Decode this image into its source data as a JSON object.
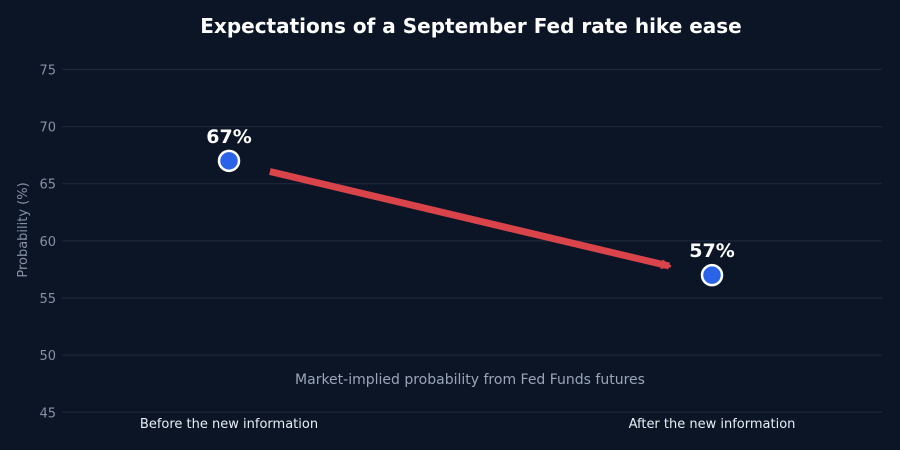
{
  "chart_data": {
    "type": "scatter",
    "title": "Expectations of a September Fed rate hike ease",
    "ylabel": "Probability (%)",
    "xlabel": "",
    "categories": [
      "Before the new information",
      "After the new information"
    ],
    "values": [
      67,
      57
    ],
    "point_labels": [
      "67%",
      "57%"
    ],
    "yticks": [
      45,
      50,
      55,
      60,
      65,
      70,
      75
    ],
    "ylim": [
      44.5,
      76
    ],
    "grid": true,
    "annotation": "Market-implied probability from Fed Funds futures",
    "arrow": {
      "from_category": 0,
      "to_category": 1,
      "color": "#d9434a"
    },
    "colors": {
      "background": "#0b1526",
      "point_fill": "#2b63e8",
      "point_stroke": "#ffffff",
      "arrow": "#d9434a"
    }
  }
}
